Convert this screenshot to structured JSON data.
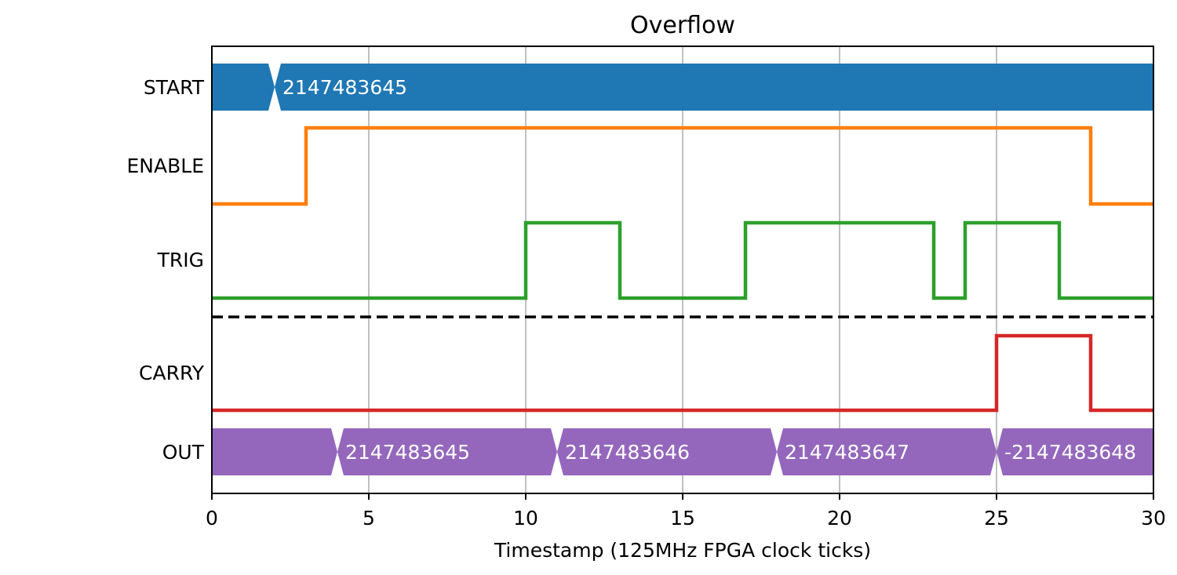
{
  "chart_data": {
    "type": "line",
    "subtype": "timing-diagram",
    "title": "Overflow",
    "xlabel": "Timestamp (125MHz FPGA clock ticks)",
    "ylabel": "",
    "xlim": [
      0,
      30
    ],
    "xticks": [
      0,
      5,
      10,
      15,
      20,
      25,
      30
    ],
    "xtick_labels": [
      "0",
      "5",
      "10",
      "15",
      "20",
      "25",
      "30"
    ],
    "grid": "x",
    "separator": {
      "after_signal": "TRIG",
      "style": "dashed"
    },
    "signals": [
      {
        "name": "START",
        "kind": "bus",
        "color": "#1f77b4",
        "transitions": [
          2
        ],
        "segments": [
          {
            "start": 0,
            "end": 2,
            "label": ""
          },
          {
            "start": 2,
            "end": 30,
            "label": "2147483645"
          }
        ]
      },
      {
        "name": "ENABLE",
        "kind": "bit",
        "color": "#ff7f0e",
        "changes": [
          [
            0,
            0
          ],
          [
            3,
            1
          ],
          [
            28,
            0
          ],
          [
            30,
            0
          ]
        ]
      },
      {
        "name": "TRIG",
        "kind": "bit",
        "color": "#2ca02c",
        "changes": [
          [
            0,
            0
          ],
          [
            10,
            1
          ],
          [
            13,
            0
          ],
          [
            17,
            1
          ],
          [
            23,
            0
          ],
          [
            24,
            1
          ],
          [
            27,
            0
          ],
          [
            30,
            0
          ]
        ]
      },
      {
        "name": "CARRY",
        "kind": "bit",
        "color": "#d62728",
        "changes": [
          [
            0,
            0
          ],
          [
            25,
            1
          ],
          [
            28,
            0
          ],
          [
            30,
            0
          ]
        ]
      },
      {
        "name": "OUT",
        "kind": "bus",
        "color": "#9467bd",
        "transitions": [
          4,
          11,
          18,
          25
        ],
        "segments": [
          {
            "start": 0,
            "end": 4,
            "label": ""
          },
          {
            "start": 4,
            "end": 11,
            "label": "2147483645"
          },
          {
            "start": 11,
            "end": 18,
            "label": "2147483646"
          },
          {
            "start": 18,
            "end": 25,
            "label": "2147483647"
          },
          {
            "start": 25,
            "end": 30,
            "label": "-2147483648"
          }
        ]
      }
    ]
  }
}
